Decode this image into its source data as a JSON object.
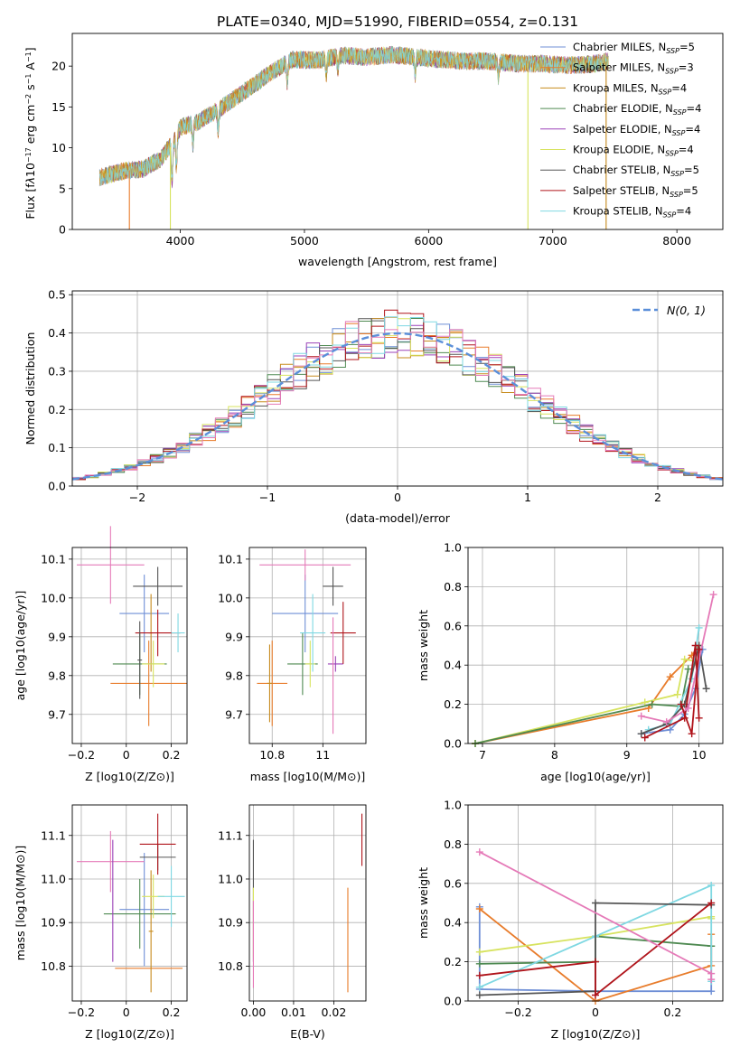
{
  "figure": {
    "title": "PLATE=0340, MJD=51990, FIBERID=0554, z=0.131"
  },
  "colors": {
    "series": [
      "#6f8fd6",
      "#e87c2b",
      "#c78b1d",
      "#4f8a52",
      "#9b42b8",
      "#d7e35f",
      "#555555",
      "#b0141b",
      "#7fd8e2"
    ],
    "gauss": "#5b8fd9",
    "pink": "#e57ab8",
    "grid": "#b0b0b0"
  },
  "chart_data": [
    {
      "id": "spectrum",
      "type": "line",
      "title": "PLATE=0340, MJD=51990, FIBERID=0554, z=0.131",
      "xlabel": "wavelength [Angstrom, rest frame]",
      "ylabel_html": "Flux [f<tspan font-style='italic'>λ</tspan>10<tspan baseline-shift='super' font-size='8'>−17</tspan> erg cm<tspan baseline-shift='super' font-size='8'>−2</tspan> s<tspan baseline-shift='super' font-size='8'>−1</tspan> A<tspan baseline-shift='super' font-size='8'>−1</tspan>]",
      "xlim": [
        3130,
        8370
      ],
      "ylim": [
        0,
        24
      ],
      "xticks": [
        4000,
        5000,
        6000,
        7000,
        8000
      ],
      "yticks": [
        0,
        5,
        10,
        15,
        20
      ],
      "grid": false,
      "legend_position": "top-right",
      "series": [
        {
          "name": "Chabrier MILES, N",
          "sub": "SSP",
          "suffix": "=5"
        },
        {
          "name": "Salpeter MILES, N",
          "sub": "SSP",
          "suffix": "=3"
        },
        {
          "name": "Kroupa MILES, N",
          "sub": "SSP",
          "suffix": "=4"
        },
        {
          "name": "Chabrier ELODIE, N",
          "sub": "SSP",
          "suffix": "=4"
        },
        {
          "name": "Salpeter ELODIE, N",
          "sub": "SSP",
          "suffix": "=4"
        },
        {
          "name": "Kroupa ELODIE, N",
          "sub": "SSP",
          "suffix": "=4"
        },
        {
          "name": "Chabrier STELIB, N",
          "sub": "SSP",
          "suffix": "=5"
        },
        {
          "name": "Salpeter STELIB, N",
          "sub": "SSP",
          "suffix": "=5"
        },
        {
          "name": "Kroupa STELIB, N",
          "sub": "SSP",
          "suffix": "=4"
        }
      ],
      "continuum": {
        "x": [
          3350,
          3550,
          3700,
          3850,
          3950,
          4000,
          4150,
          4300,
          4500,
          4700,
          4900,
          5100,
          5300,
          5500,
          5700,
          5900,
          6100,
          6300,
          6500,
          6700,
          6900,
          7100,
          7300,
          7450
        ],
        "y": [
          6.4,
          7.2,
          7.4,
          8.7,
          11.0,
          12.5,
          13.2,
          14.6,
          16.7,
          18.9,
          20.8,
          20.7,
          21.3,
          21.1,
          21.4,
          21.1,
          20.8,
          20.6,
          20.6,
          20.3,
          20.3,
          20.1,
          20.2,
          20.6
        ]
      },
      "segments": [
        {
          "series": 1,
          "x": [
            3350,
            3590
          ],
          "drop_at": 3590
        },
        {
          "series": 5,
          "x": [
            3400,
            3920
          ],
          "drop_at": 3920
        },
        {
          "series": 5,
          "x": [
            6800,
            7440
          ],
          "drop_at": 6800
        },
        {
          "series": 2,
          "x": [
            7150,
            7430
          ],
          "drop_at": 7430
        }
      ]
    },
    {
      "id": "residuals",
      "type": "histogram",
      "xlabel": "(data-model)/error",
      "ylabel": "Normed distribution",
      "xlim": [
        -2.5,
        2.5
      ],
      "ylim": [
        0,
        0.51
      ],
      "xticks": [
        -2,
        -1,
        0,
        1,
        2
      ],
      "yticks": [
        0.0,
        0.1,
        0.2,
        0.3,
        0.4,
        0.5
      ],
      "grid": true,
      "legend_position": "top-right",
      "gauss_legend": "N(0, 1)",
      "bin_width": 0.1
    },
    {
      "id": "age_vs_Z",
      "type": "scatter",
      "xlabel": "Z [log10(Z/Z⊙)]",
      "ylabel": "age  [log10(age/yr)]",
      "xlim": [
        -0.24,
        0.27
      ],
      "ylim": [
        9.625,
        10.13
      ],
      "xticks": [
        -0.2,
        0.0,
        0.2
      ],
      "yticks": [
        9.7,
        9.8,
        9.9,
        10.0,
        10.1
      ],
      "grid": true,
      "points": [
        {
          "c": 0,
          "x": 0.08,
          "xe": 0.11,
          "y": 9.96,
          "ye": 0.1
        },
        {
          "c": 1,
          "x": 0.1,
          "xe": 0.17,
          "y": 9.78,
          "ye": 0.11
        },
        {
          "c": 2,
          "x": 0.11,
          "xe": 0.01,
          "y": 9.91,
          "ye": 0.1
        },
        {
          "c": 3,
          "x": 0.06,
          "xe": 0.12,
          "y": 9.83,
          "ye": 0.08
        },
        {
          "c": 5,
          "x": 0.12,
          "xe": 0.05,
          "y": 9.83,
          "ye": 0.06
        },
        {
          "c": 6,
          "x": 0.14,
          "xe": 0.11,
          "y": 10.03,
          "ye": 0.05
        },
        {
          "c": 7,
          "x": 0.14,
          "xe": 0.1,
          "y": 9.91,
          "ye": 0.06
        },
        {
          "c": 8,
          "x": 0.23,
          "xe": 0.03,
          "y": 9.91,
          "ye": 0.05
        },
        {
          "c": 9,
          "x": -0.07,
          "xe": 0.15,
          "y": 10.085,
          "ye": 0.1
        },
        {
          "c": 6,
          "x": 0.06,
          "xe": 0.01,
          "y": 9.84,
          "ye": 0.1
        }
      ]
    },
    {
      "id": "age_vs_mass",
      "type": "scatter",
      "xlabel": "mass [log10(M/M⊙)]",
      "xlim": [
        10.71,
        11.17
      ],
      "ylim": [
        9.625,
        10.13
      ],
      "xticks": [
        10.8,
        11.0
      ],
      "yticks": [
        9.7,
        9.8,
        9.9,
        10.0,
        10.1
      ],
      "grid": true,
      "points": [
        {
          "c": 0,
          "x": 10.93,
          "xe": 0.13,
          "y": 9.96,
          "ye": 0.1
        },
        {
          "c": 1,
          "x": 10.8,
          "xe": 0.06,
          "y": 9.78,
          "ye": 0.11
        },
        {
          "c": 2,
          "x": 10.79,
          "xe": 0.01,
          "y": 9.78,
          "ye": 0.1
        },
        {
          "c": 3,
          "x": 10.92,
          "xe": 0.06,
          "y": 9.83,
          "ye": 0.08
        },
        {
          "c": 5,
          "x": 10.95,
          "xe": 0.02,
          "y": 9.83,
          "ye": 0.06
        },
        {
          "c": 8,
          "x": 10.96,
          "xe": 0.05,
          "y": 9.91,
          "ye": 0.1
        },
        {
          "c": 4,
          "x": 11.05,
          "xe": 0.03,
          "y": 9.83,
          "ye": 0.02
        },
        {
          "c": 6,
          "x": 11.04,
          "xe": 0.04,
          "y": 10.03,
          "ye": 0.05
        },
        {
          "c": 7,
          "x": 11.08,
          "xe": 0.05,
          "y": 9.91,
          "ye": 0.08
        },
        {
          "c": 9,
          "x": 10.93,
          "xe": 0.18,
          "y": 10.085,
          "ye": 0.04
        },
        {
          "c": 9,
          "x": 11.04,
          "xe": 0.0,
          "y": 9.8,
          "ye": 0.15
        }
      ]
    },
    {
      "id": "massweight_vs_age",
      "type": "line",
      "xlabel": "age  [log10(age/yr)]",
      "ylabel": "mass weight",
      "xlim": [
        6.8,
        10.33
      ],
      "ylim": [
        0,
        1
      ],
      "xticks": [
        7,
        8,
        9,
        10
      ],
      "yticks": [
        0.0,
        0.2,
        0.4,
        0.6,
        0.8,
        1.0
      ],
      "grid": true,
      "series": [
        {
          "c": 0,
          "x": [
            9.2,
            9.6,
            9.8,
            9.95,
            10.05
          ],
          "y": [
            0.05,
            0.07,
            0.15,
            0.28,
            0.48
          ]
        },
        {
          "c": 1,
          "x": [
            6.9,
            9.3,
            9.6,
            9.9,
            10.0
          ],
          "y": [
            0.0,
            0.18,
            0.34,
            0.45,
            0.5
          ]
        },
        {
          "c": 5,
          "x": [
            6.9,
            9.25,
            9.7,
            9.8,
            9.95
          ],
          "y": [
            0.0,
            0.21,
            0.25,
            0.43,
            0.42
          ]
        },
        {
          "c": 3,
          "x": [
            6.9,
            9.35,
            9.75,
            9.85
          ],
          "y": [
            0.0,
            0.2,
            0.19,
            0.38
          ]
        },
        {
          "c": 8,
          "x": [
            9.3,
            9.6,
            9.9,
            10.0
          ],
          "y": [
            0.07,
            0.1,
            0.33,
            0.59
          ]
        },
        {
          "c": 6,
          "x": [
            9.2,
            9.55,
            9.8,
            10.0,
            10.1
          ],
          "y": [
            0.05,
            0.1,
            0.2,
            0.5,
            0.28
          ]
        },
        {
          "c": 7,
          "x": [
            9.25,
            9.8,
            9.95,
            10.0
          ],
          "y": [
            0.03,
            0.13,
            0.5,
            0.13
          ]
        },
        {
          "c": 9,
          "x": [
            9.2,
            9.55,
            9.85,
            10.2
          ],
          "y": [
            0.14,
            0.11,
            0.18,
            0.76
          ]
        },
        {
          "c": 7,
          "x": [
            9.75,
            9.9,
            10.0
          ],
          "y": [
            0.2,
            0.05,
            0.48
          ]
        }
      ]
    },
    {
      "id": "mass_vs_Z",
      "type": "scatter",
      "xlabel": "Z [log10(Z/Z⊙)]",
      "ylabel": "mass [log10(M/M⊙)]",
      "xlim": [
        -0.24,
        0.27
      ],
      "ylim": [
        10.72,
        11.17
      ],
      "xticks": [
        -0.2,
        0.0,
        0.2
      ],
      "yticks": [
        10.8,
        10.9,
        11.0,
        11.1
      ],
      "grid": true,
      "points": [
        {
          "c": 0,
          "x": 0.08,
          "xe": 0.11,
          "y": 10.93,
          "ye": 0.13
        },
        {
          "c": 1,
          "x": 0.1,
          "xe": 0.15,
          "y": 10.795,
          "ye": 0.0
        },
        {
          "c": 2,
          "x": 0.11,
          "xe": 0.01,
          "y": 10.88,
          "ye": 0.14
        },
        {
          "c": 3,
          "x": 0.06,
          "xe": 0.16,
          "y": 10.92,
          "ye": 0.08
        },
        {
          "c": 5,
          "x": 0.12,
          "xe": 0.05,
          "y": 10.96,
          "ye": 0.05
        },
        {
          "c": 6,
          "x": 0.14,
          "xe": 0.08,
          "y": 11.05,
          "ye": 0.03
        },
        {
          "c": 7,
          "x": 0.14,
          "xe": 0.08,
          "y": 11.08,
          "ye": 0.07
        },
        {
          "c": 8,
          "x": 0.2,
          "xe": 0.06,
          "y": 10.96,
          "ye": 0.07
        },
        {
          "c": 9,
          "x": -0.07,
          "xe": 0.15,
          "y": 11.04,
          "ye": 0.07
        },
        {
          "c": 4,
          "x": -0.06,
          "xe": 0.0,
          "y": 10.95,
          "ye": 0.14
        }
      ]
    },
    {
      "id": "mass_vs_ebv",
      "type": "scatter",
      "xlabel": "E(B-V)",
      "xlim": [
        -0.001,
        0.028
      ],
      "ylim": [
        10.72,
        11.17
      ],
      "xticks": [
        0.0,
        0.01,
        0.02
      ],
      "xtick_labels": [
        "0.00",
        "0.01",
        "0.02"
      ],
      "yticks": [
        10.8,
        10.9,
        11.0,
        11.1
      ],
      "grid": true,
      "points": [
        {
          "c": 6,
          "x": 0.0,
          "xe": 0,
          "y": 10.95,
          "ye": 0.14
        },
        {
          "c": 5,
          "x": 0.0,
          "xe": 0,
          "y": 10.9,
          "ye": 0.08
        },
        {
          "c": 9,
          "x": 0.0,
          "xe": 0,
          "y": 10.85,
          "ye": 0.1
        },
        {
          "c": 1,
          "x": 0.0235,
          "xe": 0,
          "y": 10.86,
          "ye": 0.12
        },
        {
          "c": 7,
          "x": 0.027,
          "xe": 0,
          "y": 11.09,
          "ye": 0.06
        }
      ]
    },
    {
      "id": "massweight_vs_Z",
      "type": "line",
      "xlabel": "Z [log10(Z/Z⊙)]",
      "ylabel": "mass weight",
      "xlim": [
        -0.33,
        0.33
      ],
      "ylim": [
        0,
        1
      ],
      "xticks": [
        -0.2,
        0.0,
        0.2
      ],
      "yticks": [
        0.0,
        0.2,
        0.4,
        0.6,
        0.8,
        1.0
      ],
      "grid": true,
      "series": [
        {
          "c": 0,
          "x": [
            -0.3,
            -0.3,
            0.0,
            0.3,
            0.3
          ],
          "y": [
            0.48,
            0.06,
            0.05,
            0.05,
            0.28
          ]
        },
        {
          "c": 1,
          "x": [
            -0.3,
            0.0,
            0.3,
            0.3
          ],
          "y": [
            0.47,
            0.0,
            0.18,
            0.34
          ]
        },
        {
          "c": 5,
          "x": [
            -0.3,
            0.0,
            0.3,
            0.3
          ],
          "y": [
            0.25,
            0.33,
            0.43,
            0.42
          ]
        },
        {
          "c": 3,
          "x": [
            -0.3,
            0.0,
            0.0,
            0.3
          ],
          "y": [
            0.19,
            0.2,
            0.33,
            0.28
          ]
        },
        {
          "c": 8,
          "x": [
            -0.3,
            0.0,
            0.3,
            0.3
          ],
          "y": [
            0.07,
            0.33,
            0.59,
            0.1
          ]
        },
        {
          "c": 6,
          "x": [
            -0.3,
            0.0,
            0.0,
            0.3
          ],
          "y": [
            0.03,
            0.05,
            0.5,
            0.49
          ]
        },
        {
          "c": 7,
          "x": [
            -0.3,
            0.0,
            0.0,
            0.3
          ],
          "y": [
            0.13,
            0.2,
            0.03,
            0.5
          ]
        },
        {
          "c": 9,
          "x": [
            -0.3,
            0.3,
            0.3
          ],
          "y": [
            0.76,
            0.14,
            0.11
          ]
        }
      ]
    }
  ]
}
